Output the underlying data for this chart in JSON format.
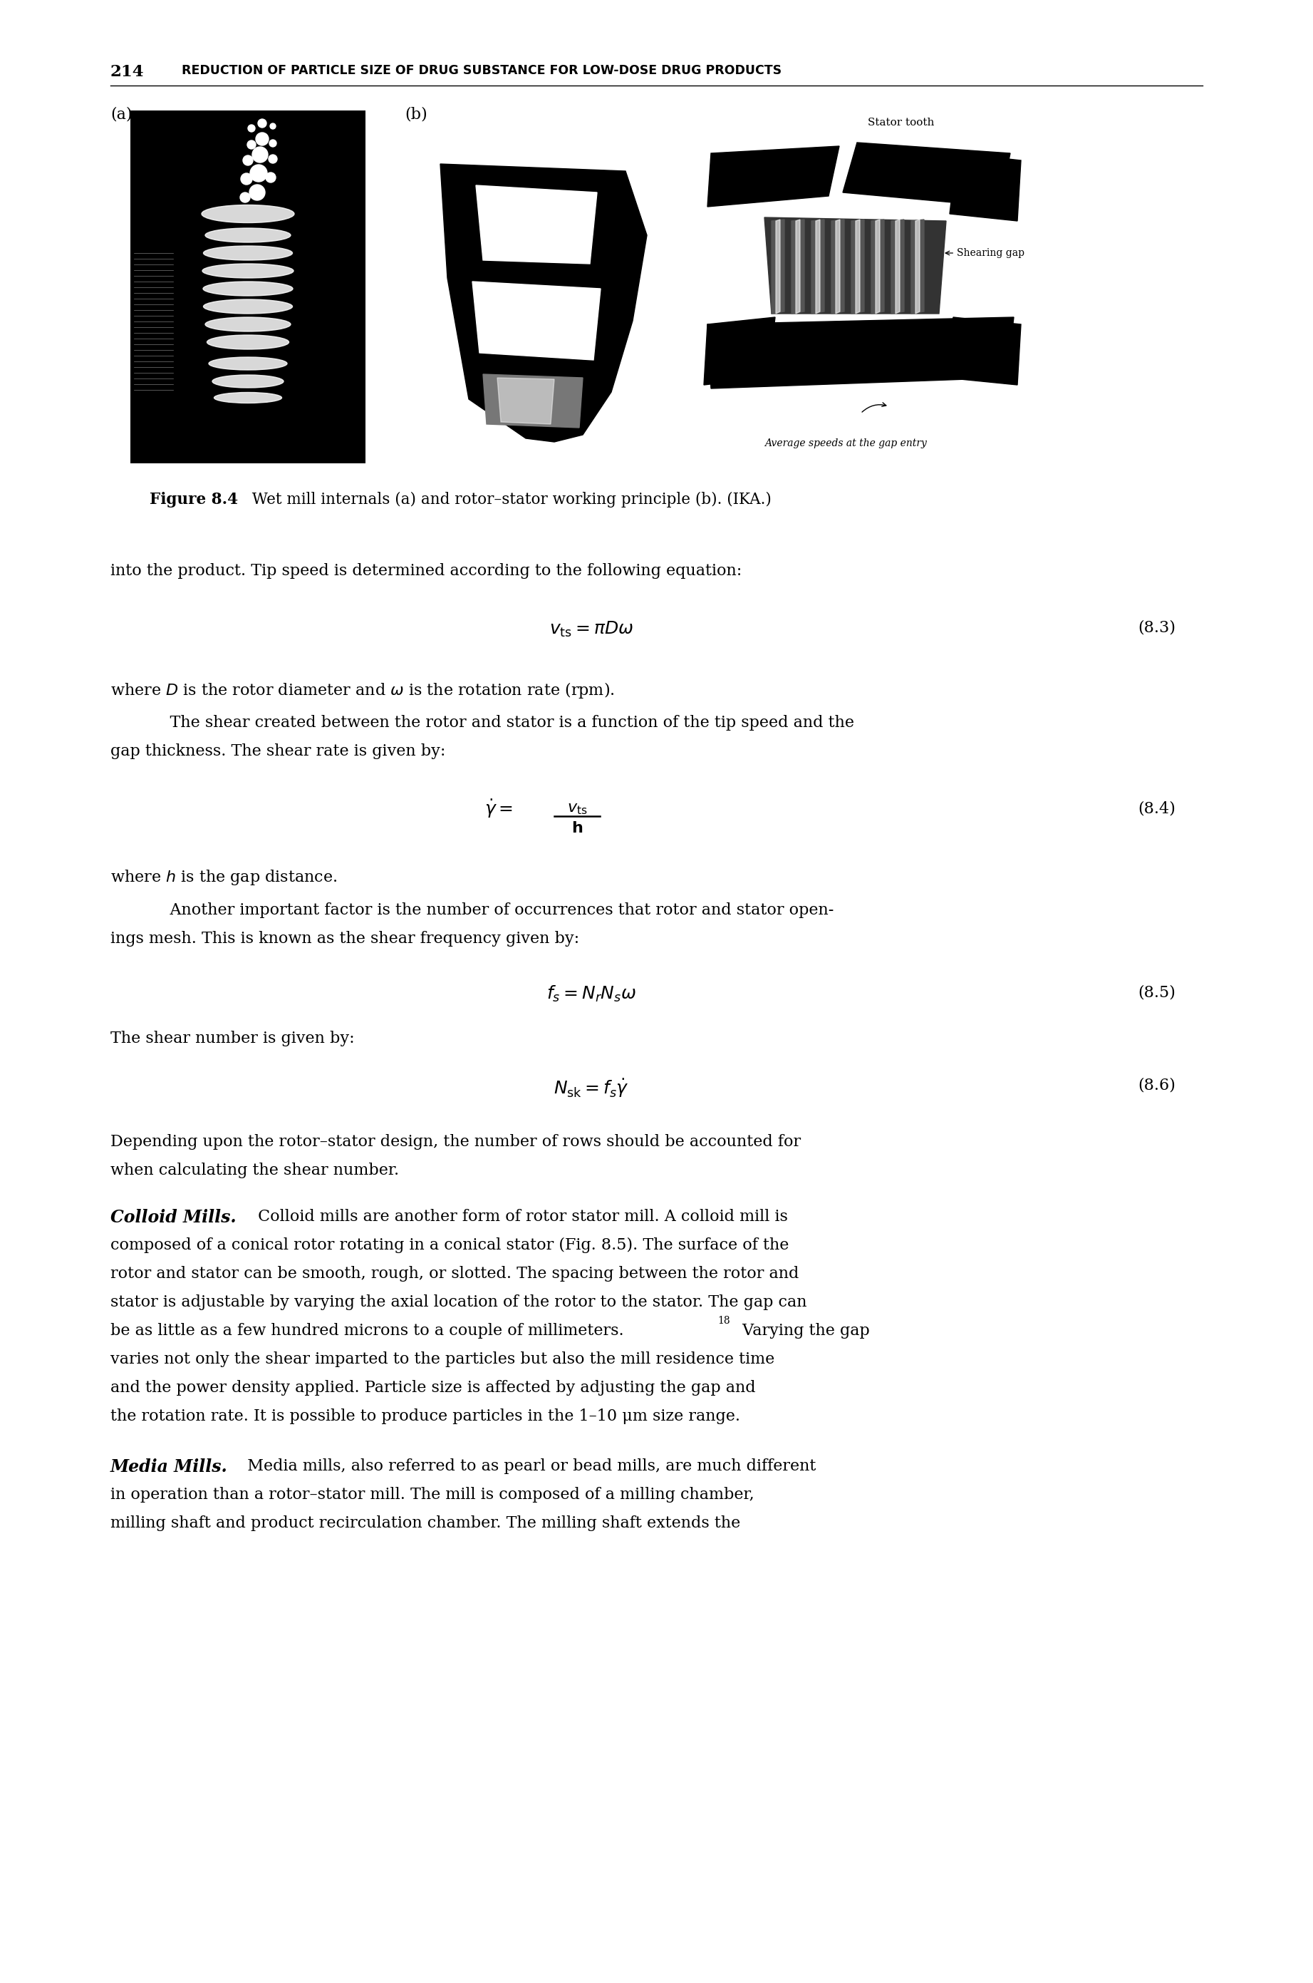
{
  "page_number": "214",
  "header": "REDUCTION OF PARTICLE SIZE OF DRUG SUBSTANCE FOR LOW-DOSE DRUG PRODUCTS",
  "figure_label_a": "(a)",
  "figure_label_b": "(b)",
  "figure_caption_bold": "Figure 8.4",
  "figure_caption_normal": "  Wet mill internals (a) and rotor–stator working principle (b). (IKA.)",
  "intro_text": "into the product. Tip speed is determined according to the following equation:",
  "eq83_label": "(8.3)",
  "eq84_label": "(8.4)",
  "eq85_label": "(8.5)",
  "eq86_label": "(8.6)",
  "where_D": "where $D$ is the rotor diameter and $\\omega$ is the rotation rate (rpm).",
  "para1a": "    The shear created between the rotor and stator is a function of the tip speed and the",
  "para1b": "gap thickness. The shear rate is given by:",
  "where_h": "where $h$ is the gap distance.",
  "para2a": "    Another important factor is the number of occurrences that rotor and stator open-",
  "para2b": "ings mesh. This is known as the shear frequency given by:",
  "shear_intro": "The shear number is given by:",
  "para3a": "Depending upon the rotor–stator design, the number of rows should be accounted for",
  "para3b": "when calculating the shear number.",
  "colloid_title": "Colloid Mills.",
  "colloid_line1": " Colloid mills are another form of rotor stator mill. A colloid mill is",
  "colloid_line2": "composed of a conical rotor rotating in a conical stator (Fig. 8.5). The surface of the",
  "colloid_line3": "rotor and stator can be smooth, rough, or slotted. The spacing between the rotor and",
  "colloid_line4": "stator is adjustable by varying the axial location of the rotor to the stator. The gap can",
  "colloid_line5a": "be as little as a few hundred microns to a couple of millimeters.",
  "colloid_line5b": " Varying the gap",
  "colloid_line6": "varies not only the shear imparted to the particles but also the mill residence time",
  "colloid_line7": "and the power density applied. Particle size is affected by adjusting the gap and",
  "colloid_line8": "the rotation rate. It is possible to produce particles in the 1–10 μm size range.",
  "media_title": "Media Mills.",
  "media_line1": "  Media mills, also referred to as pearl or bead mills, are much different",
  "media_line2": "in operation than a rotor–stator mill. The mill is composed of a milling chamber,",
  "media_line3": "milling shaft and product recirculation chamber. The milling shaft extends the",
  "bg_color": "#ffffff"
}
